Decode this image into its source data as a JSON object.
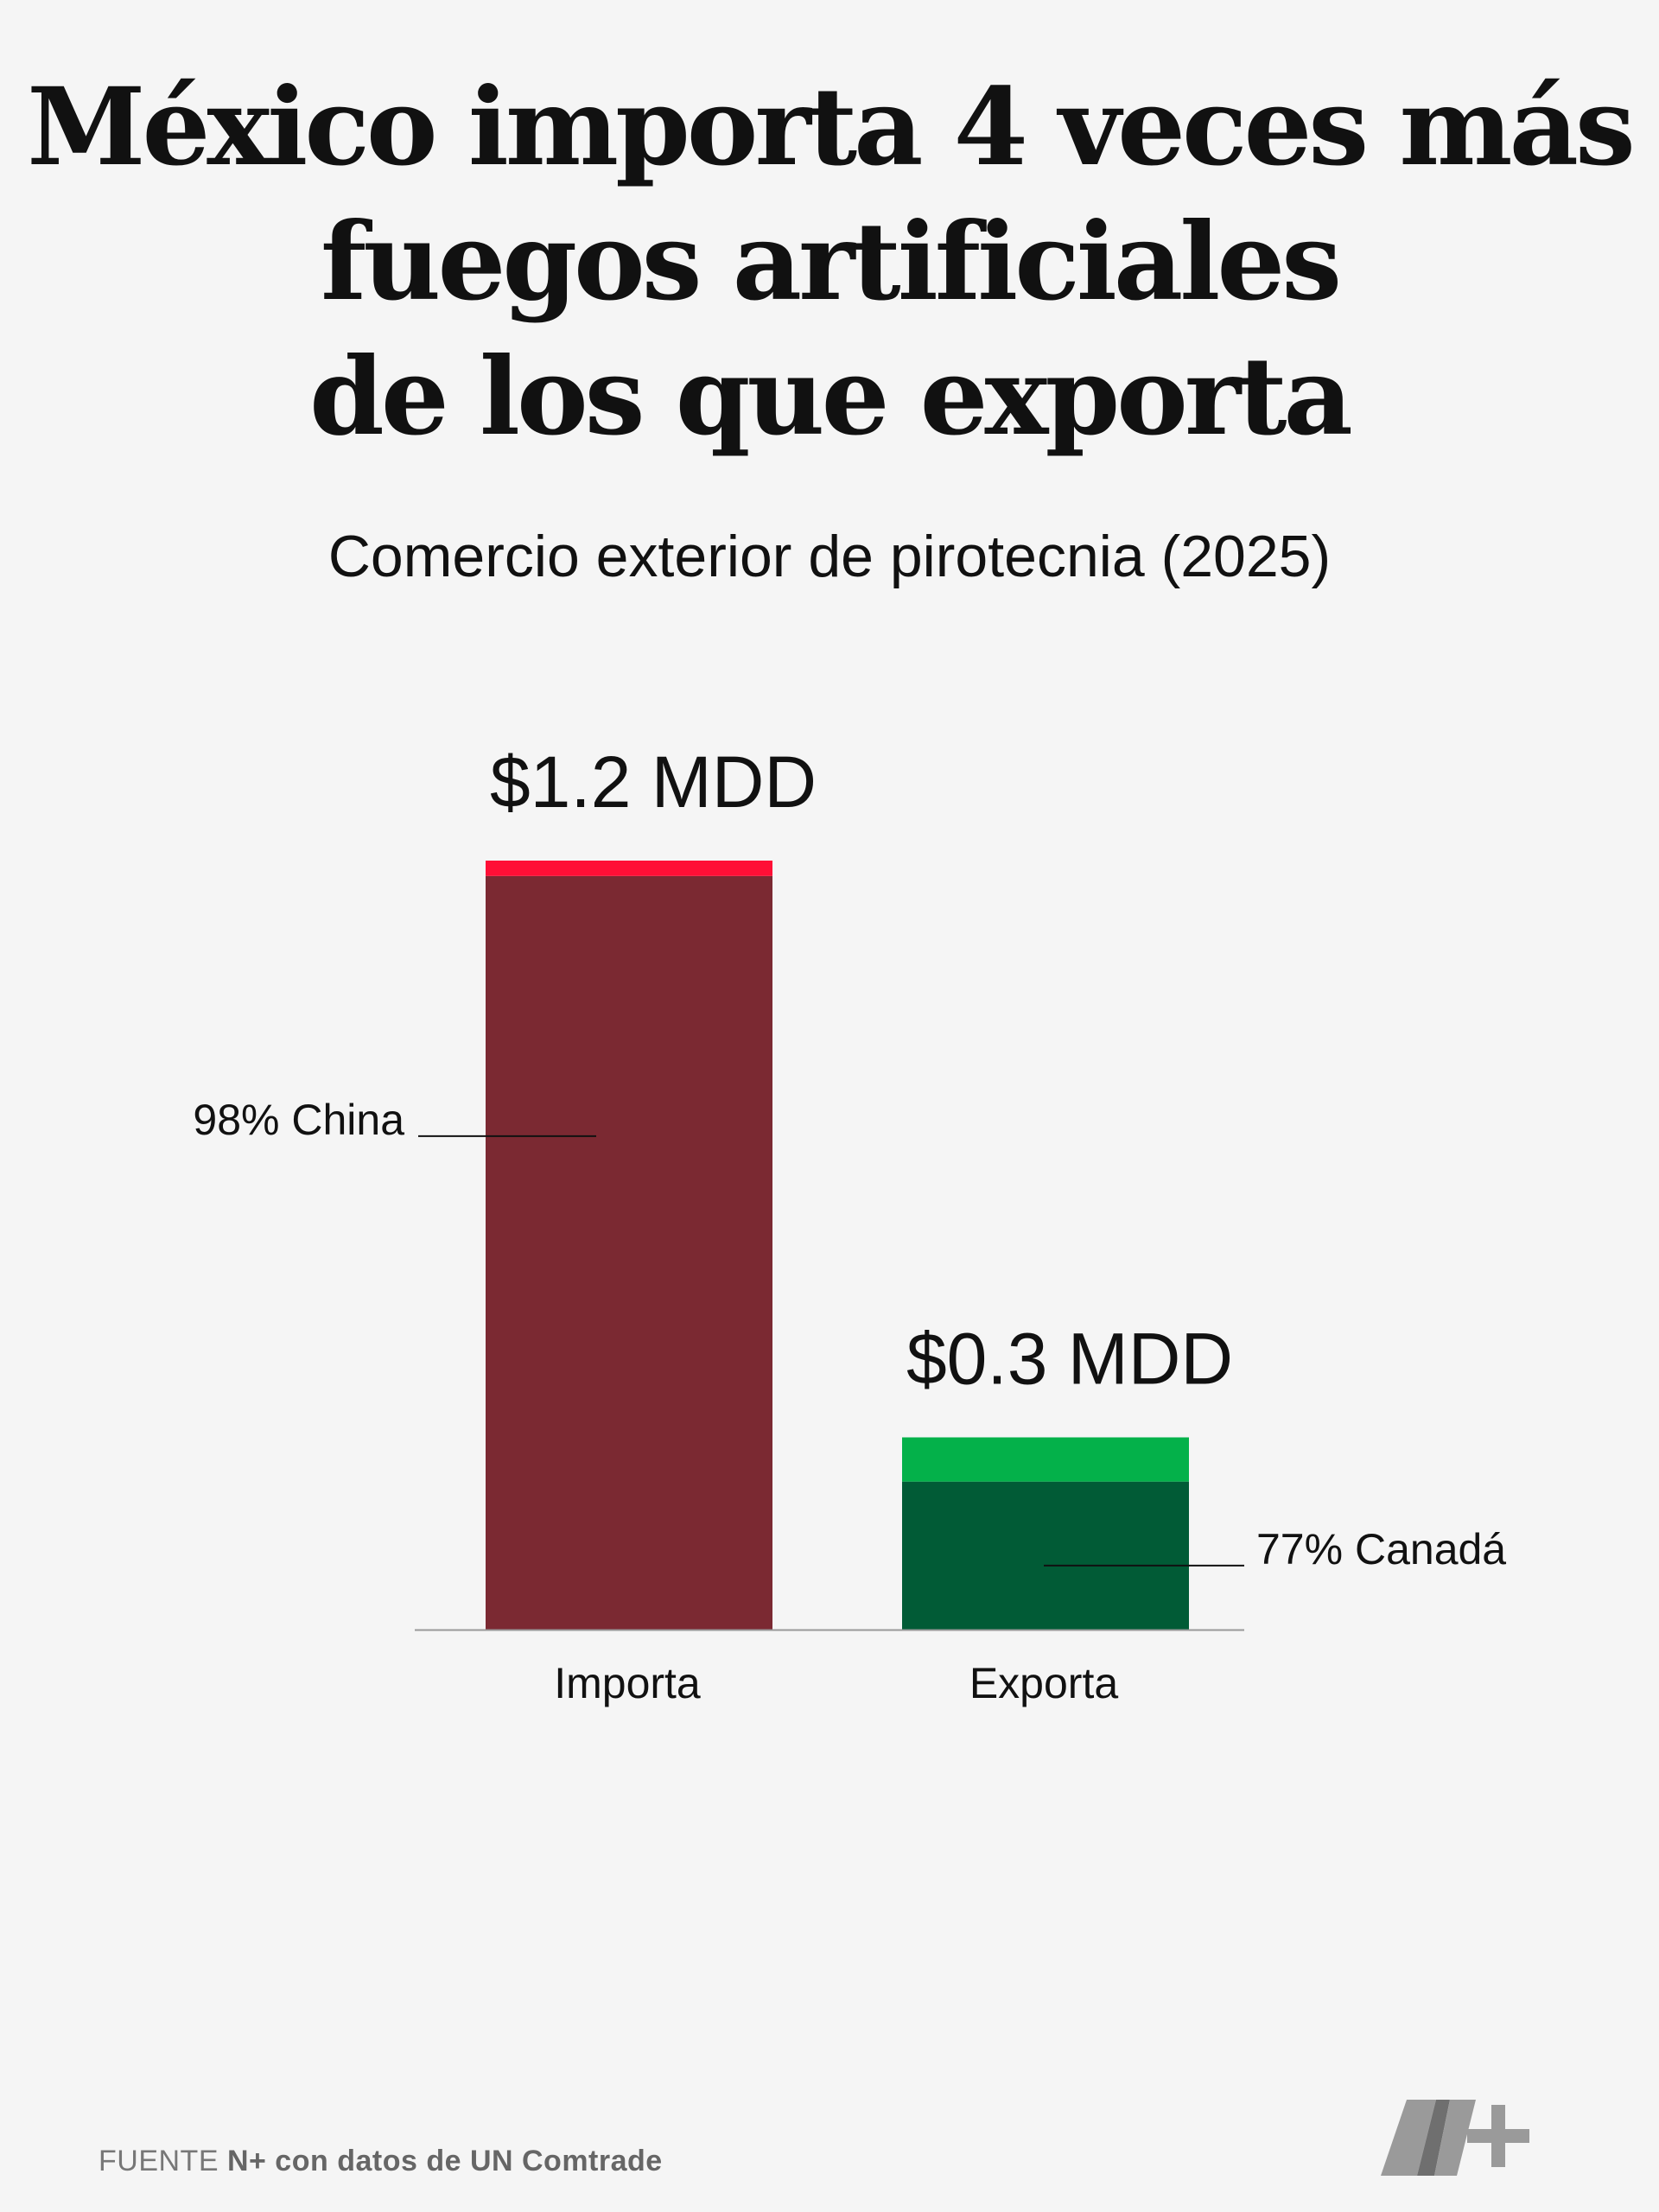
{
  "title": {
    "lines": [
      "México importa 4 veces más",
      "fuegos artificiales",
      "de los que exporta"
    ]
  },
  "subtitle": "Comercio exterior de pirotecnia (2025)",
  "chart_data": {
    "type": "bar",
    "stacked": true,
    "categories": [
      "Importa",
      "Exporta"
    ],
    "totals": [
      1.2,
      0.3
    ],
    "total_labels": [
      "$1.2 MDD",
      "$0.3 MDD"
    ],
    "series": [
      {
        "name": "98% China",
        "values": [
          1.176,
          0
        ],
        "colors": [
          "#7b2932",
          "#7b2932"
        ]
      },
      {
        "name": "77% Canadá",
        "values": [
          0,
          0.231
        ],
        "colors": [
          "#015b36",
          "#015b36"
        ]
      },
      {
        "values": [
          0.024,
          0.069
        ],
        "colors": [
          "#ff0f36",
          "#04b14a"
        ]
      }
    ],
    "annotations": [
      {
        "text": "98% China",
        "category": "Importa",
        "value": 0.77,
        "side": "left"
      },
      {
        "text": "77% Canadá",
        "category": "Exporta",
        "value": 0.1,
        "side": "right"
      }
    ],
    "ylim": [
      0,
      1.2
    ],
    "grid": false,
    "legend": "none"
  },
  "source": {
    "prefix": "FUENTE ",
    "text": "N+ con datos de UN Comtrade"
  },
  "logo": {
    "name": "n-plus-logo",
    "colors": [
      "#999999"
    ]
  }
}
